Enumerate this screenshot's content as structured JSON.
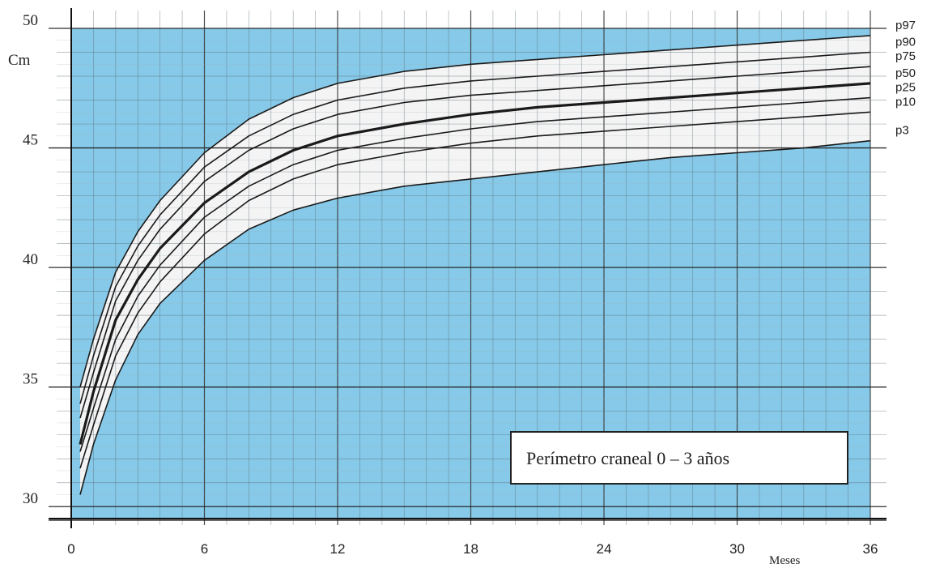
{
  "chart_data": {
    "type": "line",
    "title": "Perímetro craneal  0 – 3 años",
    "ylabel": "Cm",
    "xlabel": "Meses",
    "xlim": [
      0,
      36
    ],
    "ylim": [
      29.5,
      50
    ],
    "x_ticks": [
      "0",
      "6",
      "12",
      "18",
      "24",
      "30",
      "36"
    ],
    "y_ticks": [
      "30",
      "35",
      "40",
      "45",
      "50"
    ],
    "background_color": "#86c9e8",
    "band_color": "#f4f4f4",
    "legend_placement": "right",
    "series": [
      {
        "name": "p97",
        "x": [
          0.4,
          1,
          2,
          3,
          4,
          6,
          8,
          10,
          12,
          15,
          18,
          21,
          24,
          27,
          30,
          33,
          36
        ],
        "y": [
          35.0,
          37.0,
          39.8,
          41.5,
          42.8,
          44.8,
          46.2,
          47.1,
          47.7,
          48.2,
          48.5,
          48.7,
          48.9,
          49.1,
          49.3,
          49.5,
          49.7
        ]
      },
      {
        "name": "p90",
        "x": [
          0.4,
          1,
          2,
          3,
          4,
          6,
          8,
          10,
          12,
          15,
          18,
          21,
          24,
          27,
          30,
          33,
          36
        ],
        "y": [
          34.3,
          36.3,
          39.2,
          40.9,
          42.2,
          44.2,
          45.5,
          46.4,
          47.0,
          47.5,
          47.8,
          48.0,
          48.2,
          48.4,
          48.6,
          48.8,
          49.0
        ]
      },
      {
        "name": "p75",
        "x": [
          0.4,
          1,
          2,
          3,
          4,
          6,
          8,
          10,
          12,
          15,
          18,
          21,
          24,
          27,
          30,
          33,
          36
        ],
        "y": [
          33.7,
          35.6,
          38.6,
          40.3,
          41.6,
          43.6,
          44.9,
          45.8,
          46.4,
          46.9,
          47.2,
          47.4,
          47.6,
          47.8,
          48.0,
          48.2,
          48.4
        ]
      },
      {
        "name": "p50",
        "x": [
          0.4,
          1,
          2,
          3,
          4,
          6,
          8,
          10,
          12,
          15,
          18,
          21,
          24,
          27,
          30,
          33,
          36
        ],
        "y": [
          32.6,
          34.8,
          37.8,
          39.5,
          40.8,
          42.7,
          44.0,
          44.9,
          45.5,
          46.0,
          46.4,
          46.7,
          46.9,
          47.1,
          47.3,
          47.5,
          47.7
        ]
      },
      {
        "name": "p25",
        "x": [
          0.4,
          1,
          2,
          3,
          4,
          6,
          8,
          10,
          12,
          15,
          18,
          21,
          24,
          27,
          30,
          33,
          36
        ],
        "y": [
          32.3,
          34.1,
          37.0,
          38.8,
          40.1,
          42.1,
          43.4,
          44.3,
          44.9,
          45.4,
          45.8,
          46.1,
          46.3,
          46.5,
          46.7,
          46.9,
          47.1
        ]
      },
      {
        "name": "p10",
        "x": [
          0.4,
          1,
          2,
          3,
          4,
          6,
          8,
          10,
          12,
          15,
          18,
          21,
          24,
          27,
          30,
          33,
          36
        ],
        "y": [
          31.6,
          33.4,
          36.3,
          38.1,
          39.4,
          41.4,
          42.8,
          43.7,
          44.3,
          44.8,
          45.2,
          45.5,
          45.7,
          45.9,
          46.1,
          46.3,
          46.5
        ]
      },
      {
        "name": "p3",
        "x": [
          0.4,
          1,
          2,
          3,
          4,
          6,
          8,
          10,
          12,
          15,
          18,
          21,
          24,
          27,
          30,
          33,
          36
        ],
        "y": [
          30.5,
          32.6,
          35.3,
          37.2,
          38.5,
          40.3,
          41.6,
          42.4,
          42.9,
          43.4,
          43.7,
          44.0,
          44.3,
          44.6,
          44.8,
          45.0,
          45.3
        ]
      }
    ]
  }
}
